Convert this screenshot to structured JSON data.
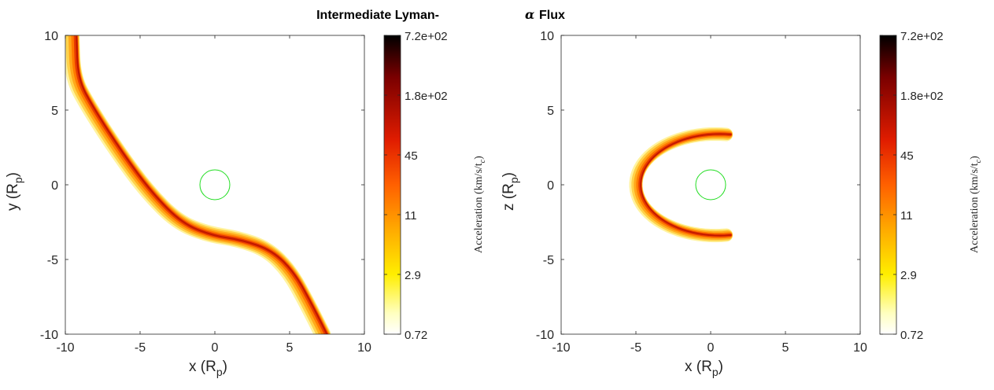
{
  "title_main": "Intermediate Lyman-",
  "title_greek": "α",
  "title_suffix": "Flux",
  "colorbar": {
    "ticks": [
      "7.2e+02",
      "1.8e+02",
      "45",
      "11",
      "2.9",
      "0.72"
    ],
    "label": "Acceleration (km/s/t",
    "label_sub": "c",
    "label_close": ")",
    "colors": [
      "#000000",
      "#7a0000",
      "#e01c00",
      "#ff6000",
      "#ffaa00",
      "#ffee00",
      "#ffffc0",
      "#ffffff"
    ]
  },
  "chart_data": [
    {
      "type": "heatmap",
      "xlabel": "x (R",
      "xlabel_sub": "p",
      "xlabel_close": ")",
      "ylabel": "y (R",
      "ylabel_sub": "p",
      "ylabel_close": ")",
      "xlim": [
        -10,
        10
      ],
      "ylim": [
        -10,
        10
      ],
      "xticks": [
        "-10",
        "-5",
        "0",
        "5",
        "10"
      ],
      "yticks": [
        "10",
        "5",
        "0",
        "-5",
        "-10"
      ],
      "planet": {
        "x": 0,
        "y": 0,
        "radius": 1,
        "color": "#22dd22"
      },
      "band_centerline": [
        [
          -9.6,
          10
        ],
        [
          -9.5,
          7.2
        ],
        [
          -8.5,
          5.3
        ],
        [
          -6.5,
          2.2
        ],
        [
          -4.5,
          -0.5
        ],
        [
          -2.5,
          -2.5
        ],
        [
          -0.5,
          -3.3
        ],
        [
          1.5,
          -3.6
        ],
        [
          3.5,
          -4.3
        ],
        [
          5.0,
          -5.8
        ],
        [
          6.2,
          -8.0
        ],
        [
          7.2,
          -10
        ]
      ],
      "band_width": 1.1
    },
    {
      "type": "heatmap",
      "xlabel": "x (R",
      "xlabel_sub": "p",
      "xlabel_close": ")",
      "ylabel": "z (R",
      "ylabel_sub": "p",
      "ylabel_close": ")",
      "xlim": [
        -10,
        10
      ],
      "ylim": [
        -10,
        10
      ],
      "xticks": [
        "-10",
        "-5",
        "0",
        "5",
        "10"
      ],
      "yticks": [
        "10",
        "5",
        "0",
        "-5",
        "-10"
      ],
      "planet": {
        "x": 0,
        "y": 0,
        "radius": 1,
        "color": "#22dd22"
      },
      "arc": {
        "center_x": 0.3,
        "center_y": 0,
        "rx": 5.3,
        "ry": 3.4,
        "from_deg": 82,
        "to_deg": 278
      },
      "band_width": 0.9
    }
  ]
}
